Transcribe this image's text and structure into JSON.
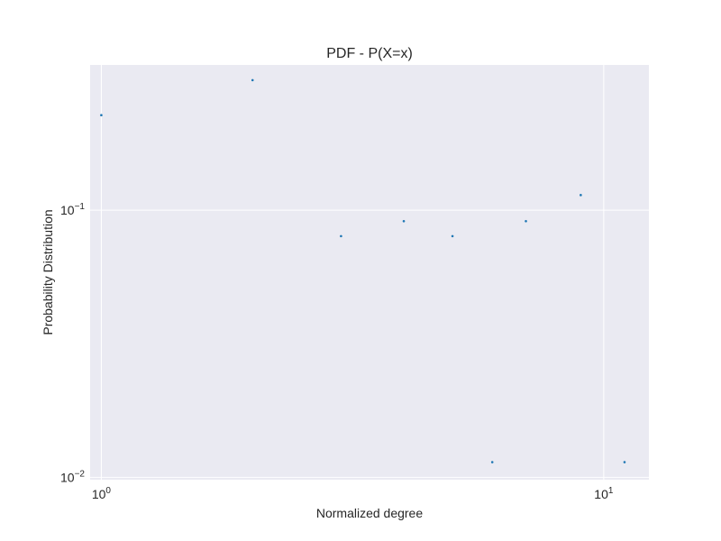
{
  "chart_data": {
    "type": "scatter",
    "title": "PDF - P(X=x)",
    "xlabel": "Normalized degree",
    "ylabel": "Probability Distribution",
    "xscale": "log",
    "yscale": "log",
    "xlim": [
      0.95,
      12.3
    ],
    "ylim": [
      0.0098,
      0.35
    ],
    "grid": true,
    "x_ticks": [
      {
        "value": 1,
        "base": "10",
        "exp": "0"
      },
      {
        "value": 10,
        "base": "10",
        "exp": "1"
      }
    ],
    "y_ticks": [
      {
        "value": 0.01,
        "base": "10",
        "exp": "−2"
      },
      {
        "value": 0.1,
        "base": "10",
        "exp": "−1"
      }
    ],
    "series": [
      {
        "color": "#1f77b4",
        "points": [
          {
            "x": 1,
            "y": 0.227
          },
          {
            "x": 2,
            "y": 0.307
          },
          {
            "x": 3,
            "y": 0.08
          },
          {
            "x": 4,
            "y": 0.091
          },
          {
            "x": 5,
            "y": 0.08
          },
          {
            "x": 6,
            "y": 0.0114
          },
          {
            "x": 7,
            "y": 0.091
          },
          {
            "x": 9,
            "y": 0.114
          },
          {
            "x": 11,
            "y": 0.0114
          }
        ]
      }
    ]
  }
}
